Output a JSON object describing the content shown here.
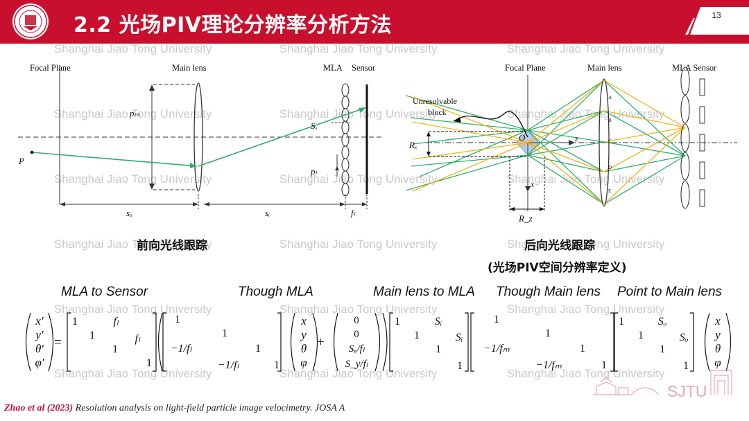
{
  "header": {
    "title": "2.2 光场PIV理论分辨率分析方法",
    "page_number": "13",
    "brand_color": "#c8102e"
  },
  "watermark": {
    "text": "Shanghai Jiao Tong University"
  },
  "left_figure": {
    "focal_plane_label": "Focal Plane",
    "main_lens_label": "Main lens",
    "mla_label": "MLA",
    "sensor_label": "Sensor",
    "point_label": "P",
    "pm_label": "pₘ",
    "pl_label": "pₗ",
    "sx_label": "Sₓ",
    "so_label": "sₒ",
    "si_label": "sᵢ",
    "fl_label": "fₗ",
    "caption": "前向光线跟踪"
  },
  "right_figure": {
    "focal_plane_label": "Focal Plane",
    "main_lens_label": "Main lens",
    "mla_sensor_label": "MLA Sensor",
    "unresolvable_label_line1": "Unresolvable",
    "unresolvable_label_line2": "block",
    "rx_label": "Rₓ",
    "rz_label": "R_z",
    "o_label": "O",
    "z_label": "z",
    "x_label": "x",
    "lens_marks": [
      "A",
      "B",
      "C",
      "D",
      "E"
    ],
    "caption_line1": "后向光线跟踪",
    "caption_line2": "(光场PIV空间分辨率定义)"
  },
  "equation": {
    "labels": {
      "mla_to_sensor": "MLA to Sensor",
      "though_mla": "Though MLA",
      "main_lens_to_mla": "Main lens to MLA",
      "though_main_lens": "Though Main lens",
      "point_to_main_lens": "Point to Main lens"
    },
    "lhs_vector": [
      "x′",
      "y′",
      "θ′",
      "φ′"
    ],
    "equals": "=",
    "plus": "+",
    "propagation_mla_sensor": {
      "one": "1",
      "f": "fₗ"
    },
    "thin_lens_mla": {
      "one": "1",
      "neg": "−1/fₗ"
    },
    "offset_vector": [
      "0",
      "0",
      "Sₓ/fₗ",
      "S_y/fₗ"
    ],
    "propagation_main_mla": {
      "one": "1",
      "s": "Sᵢ"
    },
    "thin_lens_main": {
      "one": "1",
      "neg": "−1/fₘ"
    },
    "propagation_point_main": {
      "one": "1",
      "s": "Sₒ"
    },
    "rhs_vector": [
      "x",
      "y",
      "θ",
      "φ"
    ]
  },
  "logo": {
    "text": "SJTU"
  },
  "reference": {
    "authors": "Zhao et al (2023)",
    "rest": " Resolution analysis on light-field particle image velocimetry. JOSA A"
  }
}
